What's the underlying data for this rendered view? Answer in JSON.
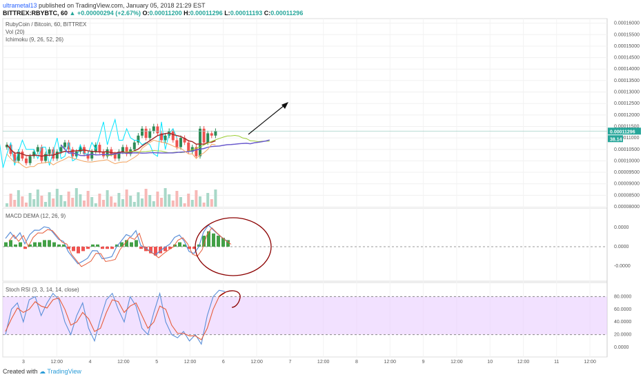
{
  "header": {
    "author": "ultrametal13",
    "published_text": "published on TradingView.com, January 05, 2018 21:29 EST",
    "symbol": "BITTREX:RBYBTC, 60",
    "change": "▲ +0.00000294 (+2.67%)",
    "o_label": "O:",
    "o_value": "0.00011200",
    "h_label": "H:",
    "h_value": "0.00011296",
    "l_label": "L:",
    "l_value": "0.00011193",
    "c_label": "C:",
    "c_value": "0.00011296"
  },
  "legend": {
    "title": "RubyCoin / Bitcoin, 60, BITTREX",
    "vol": "Vol (20)",
    "ichimoku": "Ichimoku (9, 26, 52, 26)",
    "macd": "MACD DEMA (12, 26, 9)",
    "stoch": "Stoch RSI (3, 3, 14, 14, close)"
  },
  "footer": {
    "created_with": "Created with",
    "brand": "TradingView"
  },
  "colors": {
    "up": "#26a69a",
    "up_candle": "#2e8b57",
    "down": "#ef5350",
    "tenkan": "#00e5ff",
    "kijun": "#a52a2a",
    "senkou_a": "#9acd32",
    "senkou_b": "#6a5acd",
    "chikou": "#f4a460",
    "macd_line": "#5b8fd8",
    "signal_line": "#e65c3a",
    "stoch_fill": "#e8c8ff",
    "annotation": "#8b0000",
    "price_tag": "#26a69a"
  },
  "chart_data": [
    {
      "type": "candlestick",
      "title": "RubyCoin / Bitcoin, 60, BITTREX",
      "ylim": [
        8e-05,
        0.000162
      ],
      "y_ticks": [
        "0.00016000",
        "0.00015500",
        "0.00015000",
        "0.00014500",
        "0.00014000",
        "0.00013500",
        "0.00013000",
        "0.00012500",
        "0.00012000",
        "0.00011500",
        "0.00011000",
        "0.00010500",
        "0.00010000",
        "0.00009500",
        "0.00009000",
        "0.00008500",
        "0.00008000"
      ],
      "last_price": "0.00011296",
      "price_tag2": "38.14",
      "x_ticks": [
        "3",
        "12:00",
        "4",
        "12:00",
        "5",
        "12:00",
        "6",
        "12:00",
        "7",
        "12:00",
        "8",
        "12:00",
        "9",
        "12:00",
        "10",
        "12:00",
        "11",
        "12:00"
      ],
      "candles_close": [
        0.000107,
        0.000103,
        0.0001,
        0.000104,
        0.000101,
        9.9e-05,
        0.000102,
        0.000104,
        0.000106,
        0.0001,
        0.000103,
        0.000105,
        0.000101,
        0.000104,
        0.000106,
        0.000108,
        0.000105,
        0.000102,
        0.000104,
        0.000106,
        0.000103,
        0.000101,
        0.000104,
        0.000107,
        0.000104,
        0.000102,
        0.000105,
        0.000103,
        0.000101,
        0.000104,
        0.000106,
        0.000103,
        0.000105,
        0.000108,
        0.000111,
        0.000114,
        0.00011,
        0.000113,
        0.000115,
        0.000112,
        0.000109,
        0.000111,
        0.000113,
        0.000109,
        0.000106,
        0.00011,
        0.000108,
        0.000104,
        0.000106,
        0.000102,
        0.000114,
        0.000108,
        0.000112,
        0.000111,
        0.000113
      ]
    },
    {
      "type": "bar",
      "title": "MACD DEMA (12, 26, 9)",
      "y_ticks": [
        "0.0000",
        "0.0000",
        "-0.0000"
      ],
      "histogram": [
        2,
        3,
        1,
        2,
        -1,
        1,
        2,
        2,
        3,
        3,
        2,
        1,
        1,
        -1,
        -2,
        -3,
        -2,
        -1,
        1,
        1,
        -1,
        -1,
        -1,
        1,
        2,
        3,
        2,
        3,
        -1,
        -2,
        -3,
        -4,
        -3,
        -2,
        -1,
        1,
        2,
        1,
        -1,
        -1,
        1,
        5,
        7,
        6,
        5,
        4,
        3
      ]
    },
    {
      "type": "line",
      "title": "Stoch RSI (3, 3, 14, 14, close)",
      "ylim": [
        0,
        100
      ],
      "y_ticks": [
        "80.0000",
        "60.0000",
        "40.0000",
        "20.0000",
        "0.0000"
      ],
      "k": [
        20,
        60,
        70,
        40,
        75,
        80,
        50,
        70,
        85,
        75,
        40,
        20,
        50,
        70,
        30,
        10,
        45,
        75,
        85,
        60,
        40,
        80,
        65,
        30,
        20,
        55,
        85,
        40,
        20,
        15,
        25,
        10,
        20,
        5,
        50,
        80,
        90,
        88
      ],
      "d": [
        25,
        45,
        62,
        55,
        60,
        72,
        65,
        62,
        75,
        78,
        60,
        35,
        40,
        55,
        45,
        25,
        30,
        55,
        75,
        72,
        55,
        65,
        70,
        50,
        30,
        40,
        65,
        60,
        35,
        22,
        22,
        18,
        18,
        12,
        30,
        60,
        80,
        86
      ]
    }
  ]
}
